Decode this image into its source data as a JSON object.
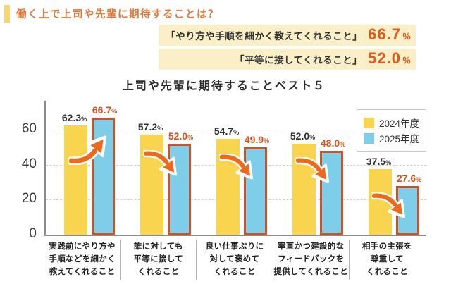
{
  "header": {
    "title": "働く上で上司や先輩に期待することは？"
  },
  "callouts": [
    {
      "label": "「やり方や手順を細かく教えてくれること」",
      "value": "66.7",
      "unit": "％"
    },
    {
      "label": "「平等に接してくれること」",
      "value": "52.0",
      "unit": "％"
    }
  ],
  "chart_data": {
    "type": "bar",
    "title": "上司や先輩に期待することベスト５",
    "categories": [
      [
        "実践前にやり方や",
        "手順などを細かく",
        "教えてくれること"
      ],
      [
        "誰に対しても",
        "平等に接して",
        "くれること"
      ],
      [
        "良い仕事ぶりに",
        "対して褒めて",
        "くれること"
      ],
      [
        "率直かつ建設的な",
        "フィードバックを",
        "提供してくれること"
      ],
      [
        "相手の主張を",
        "尊重して",
        "くれること"
      ]
    ],
    "series": [
      {
        "name": "2024年度",
        "values": [
          62.3,
          57.2,
          54.7,
          52.0,
          37.5
        ]
      },
      {
        "name": "2025年度",
        "values": [
          66.7,
          52.0,
          49.9,
          48.0,
          27.6
        ]
      }
    ],
    "value_unit": "%",
    "trend": [
      "up",
      "down",
      "down",
      "down",
      "down"
    ],
    "yticks": [
      0,
      20,
      40,
      60
    ],
    "ylim": [
      0,
      76.5
    ],
    "grid": "dashed-horizontal",
    "legend_position": "top-right"
  },
  "colors": {
    "series_2024": "#F9D44E",
    "series_2025": "#7FCEE9",
    "series_2025_border": "#C7552A",
    "arrow": "#EC6A1E",
    "value_label_2024": "#333333",
    "value_label_2025": "#D6531C",
    "header_text": "#E0793A",
    "header_accent": "#F5D876",
    "callout_highlight": "#FBEFC8",
    "callout_number": "#DD5B1E",
    "axis": "#8C8C8C"
  }
}
